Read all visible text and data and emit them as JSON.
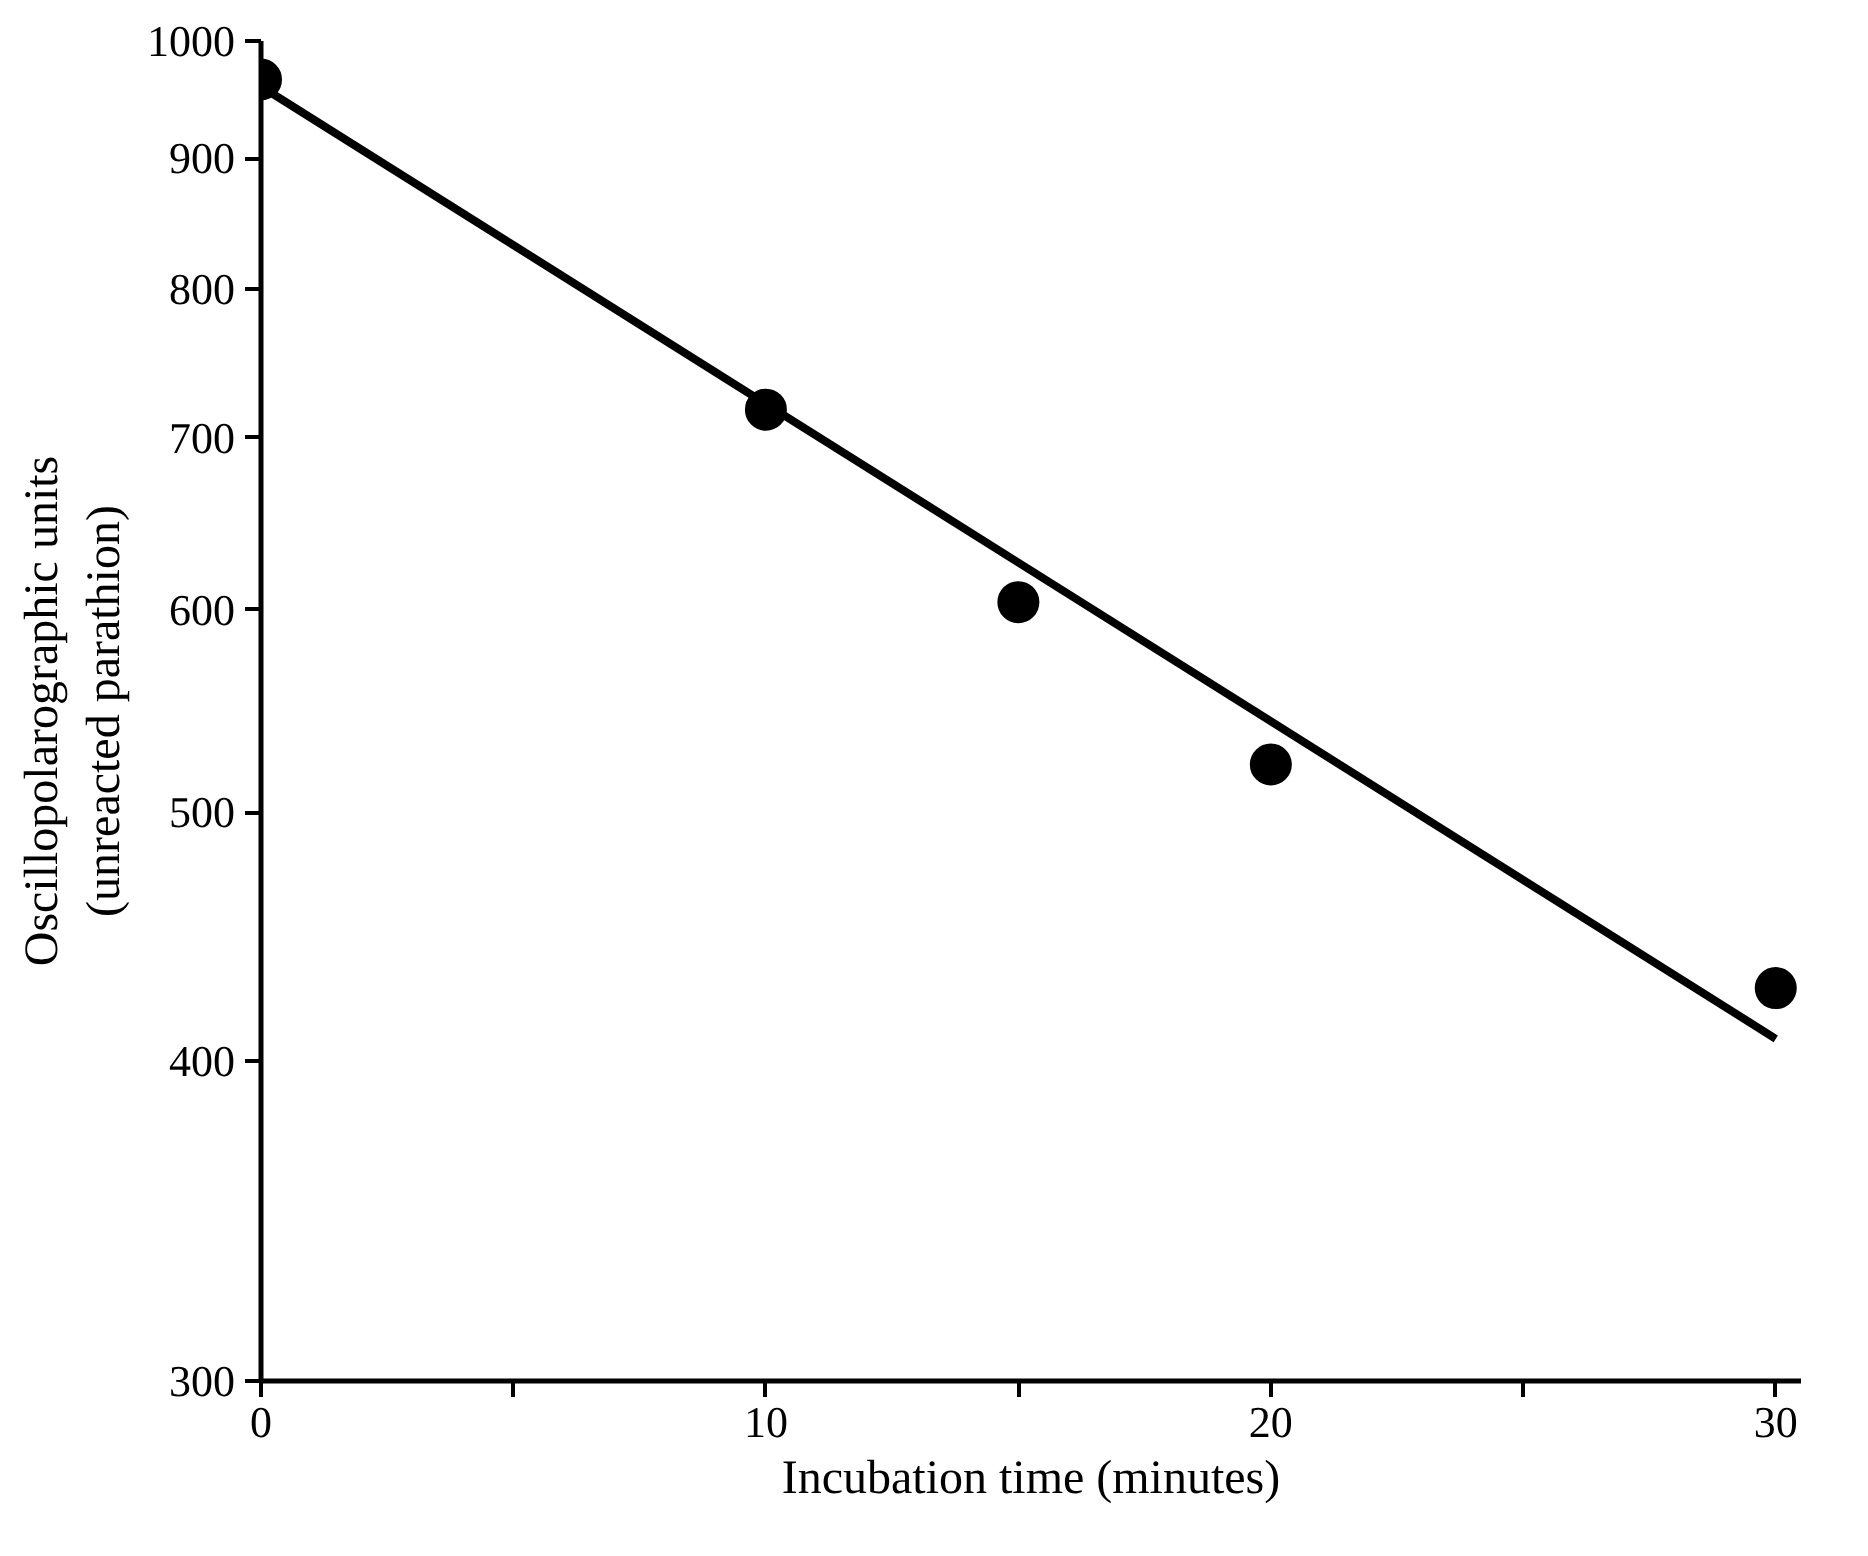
{
  "chart_data": {
    "type": "scatter",
    "xlabel": "Incubation time (minutes)",
    "ylabel": "Oscillopolarographic units\n(unreacted parathion)",
    "log": "y",
    "xlim": [
      0,
      30.5
    ],
    "ylim": [
      300,
      1000
    ],
    "xticks": [
      0,
      {
        "value": 5,
        "label": null
      },
      10,
      {
        "value": 15,
        "label": null
      },
      20,
      {
        "value": 25,
        "label": null
      },
      30
    ],
    "yticks": [
      300,
      400,
      500,
      600,
      700,
      800,
      900,
      1000
    ],
    "grid": false,
    "series": [
      {
        "color": "#000000",
        "marker": "circle",
        "x": [
          0,
          10,
          15,
          20,
          30
        ],
        "values": [
          966,
          718,
          604,
          522,
          427
        ]
      },
      {
        "type": "line",
        "marker": "none",
        "color": "#000000",
        "x": [
          0,
          30
        ],
        "values": [
          960,
          408
        ]
      }
    ]
  }
}
